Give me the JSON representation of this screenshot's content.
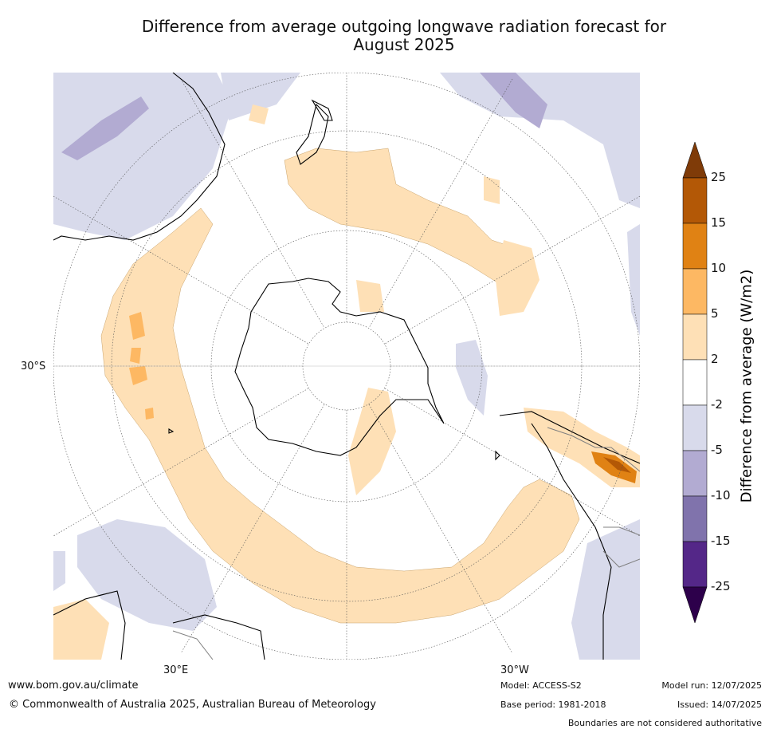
{
  "title": {
    "line1": "Difference from average outgoing longwave radiation forecast for",
    "line2": "August 2025"
  },
  "map": {
    "projection": "south-polar-stereographic",
    "lat_label": "30°S",
    "lon_labels": [
      "30°E",
      "30°W"
    ],
    "colors": {
      "ocean": "#ffffff",
      "coast": "#000000",
      "boundary": "#808080",
      "graticule": "#555555"
    }
  },
  "legend": {
    "label": "Difference from average (W/m2)",
    "ticks": [
      "25",
      "15",
      "10",
      "5",
      "2",
      "-2",
      "-5",
      "-10",
      "-15",
      "-25"
    ],
    "bands": [
      {
        "range": ">25",
        "color": "#7f3b08"
      },
      {
        "range": "15 to 25",
        "color": "#b35806"
      },
      {
        "range": "10 to 15",
        "color": "#e08214"
      },
      {
        "range": "5 to 10",
        "color": "#fdb863"
      },
      {
        "range": "2 to 5",
        "color": "#fee0b6"
      },
      {
        "range": "-2 to 2",
        "color": "#ffffff"
      },
      {
        "range": "-5 to -2",
        "color": "#d8daeb"
      },
      {
        "range": "-10 to -5",
        "color": "#b2abd2"
      },
      {
        "range": "-15 to -10",
        "color": "#8073ac"
      },
      {
        "range": "-25 to -15",
        "color": "#542788"
      },
      {
        "range": "<-25",
        "color": "#2d004b"
      }
    ]
  },
  "footer": {
    "site": "www.bom.gov.au/climate",
    "copyright": "© Commonwealth of Australia 2025, Australian Bureau of Meteorology",
    "model": "Model: ACCESS-S2",
    "base_period": "Base period: 1981-2018",
    "model_run": "Model run: 12/07/2025",
    "issued": "Issued: 14/07/2025",
    "disclaimer": "Boundaries are not considered authoritative"
  }
}
